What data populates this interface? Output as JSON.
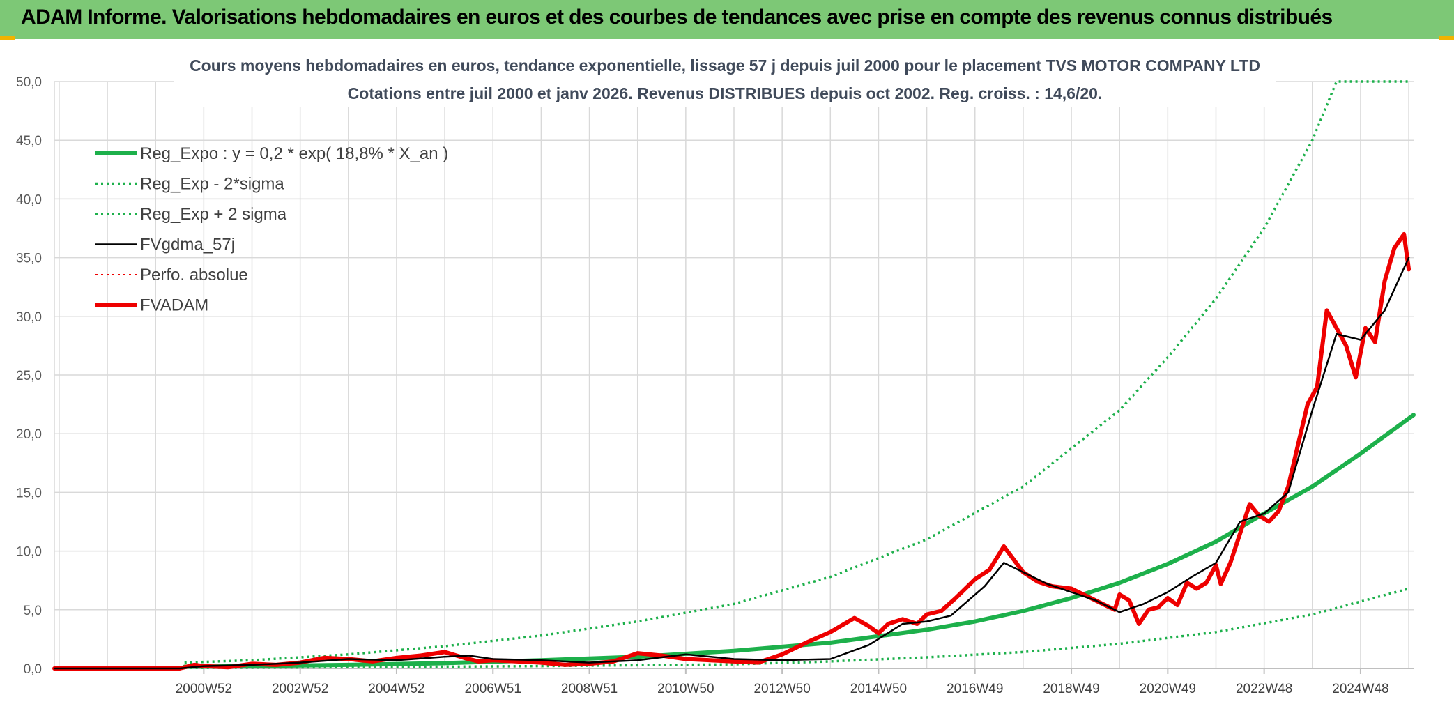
{
  "header": {
    "title": "ADAM Informe. Valorisations hebdomadaires en euros et des courbes de tendances avec prise en compte des revenus connus distribués"
  },
  "colors": {
    "banner": "#7dc876",
    "reg_green": "#1db04b",
    "black": "#000000",
    "red": "#ee0000",
    "grid": "#d9d9d9",
    "corner": "#f2b300"
  },
  "chart_data": {
    "type": "line",
    "title": "Cours moyens hebdomadaires en euros, tendance exponentielle, lissage 57 j depuis juil 2000 pour le placement TVS MOTOR COMPANY LTD",
    "subtitle": "Cotations entre juil 2000 et janv 2026. Revenus DISTRIBUES depuis oct 2002. Reg. croiss. : 14,6/20.",
    "xlabel": "",
    "ylabel": "",
    "ylim": [
      0,
      50
    ],
    "x_range": [
      1997.9,
      2026.1
    ],
    "grid": true,
    "legend_position": "top-left",
    "y_ticks": [
      "0,0",
      "5,0",
      "10,0",
      "15,0",
      "20,0",
      "25,0",
      "30,0",
      "35,0",
      "40,0",
      "45,0",
      "50,0"
    ],
    "x_ticks": [
      {
        "label": "2000W52",
        "x": 2001.0
      },
      {
        "label": "2002W52",
        "x": 2003.0
      },
      {
        "label": "2004W52",
        "x": 2005.0
      },
      {
        "label": "2006W51",
        "x": 2007.0
      },
      {
        "label": "2008W51",
        "x": 2009.0
      },
      {
        "label": "2010W50",
        "x": 2011.0
      },
      {
        "label": "2012W50",
        "x": 2013.0
      },
      {
        "label": "2014W50",
        "x": 2015.0
      },
      {
        "label": "2016W49",
        "x": 2017.0
      },
      {
        "label": "2018W49",
        "x": 2019.0
      },
      {
        "label": "2020W49",
        "x": 2021.0
      },
      {
        "label": "2022W48",
        "x": 2023.0
      },
      {
        "label": "2024W48",
        "x": 2025.0
      }
    ],
    "series": [
      {
        "name": "Reg_Expo : y = 0,2 * exp( 18,8% *  X_an )",
        "style": "solid-thick",
        "color": "#1db04b",
        "x": [
          2000.6,
          2002,
          2004,
          2006,
          2008,
          2010,
          2012,
          2014,
          2016,
          2017,
          2018,
          2019,
          2020,
          2021,
          2022,
          2023,
          2024,
          2025,
          2026.1
        ],
        "y": [
          0.15,
          0.2,
          0.3,
          0.45,
          0.7,
          1.0,
          1.5,
          2.2,
          3.3,
          4.0,
          4.9,
          6.0,
          7.3,
          8.9,
          10.8,
          13.2,
          15.5,
          18.3,
          21.6
        ]
      },
      {
        "name": "Reg_Exp - 2*sigma",
        "style": "dotted",
        "color": "#1db04b",
        "x": [
          2000.6,
          2004,
          2008,
          2012,
          2014,
          2016,
          2018,
          2020,
          2022,
          2024,
          2026
        ],
        "y": [
          0.05,
          0.1,
          0.2,
          0.35,
          0.6,
          0.95,
          1.4,
          2.1,
          3.1,
          4.6,
          6.8
        ]
      },
      {
        "name": "Reg_Exp + 2 sigma",
        "style": "dotted",
        "color": "#1db04b",
        "x": [
          2000.6,
          2002,
          2004,
          2006,
          2008,
          2010,
          2012,
          2014,
          2016,
          2018,
          2020,
          2021,
          2022,
          2023,
          2024,
          2024.5,
          2025,
          2026
        ],
        "y": [
          0.5,
          0.7,
          1.2,
          1.9,
          2.8,
          4.0,
          5.5,
          7.8,
          11,
          15.5,
          22,
          26.5,
          31.5,
          37.5,
          45,
          50,
          50,
          50
        ]
      },
      {
        "name": "FVgdma_57j",
        "style": "solid",
        "color": "#000000",
        "x": [
          1997.9,
          2000.5,
          2001,
          2002,
          2003,
          2004,
          2005,
          2006,
          2006.5,
          2007,
          2008,
          2009,
          2010,
          2011,
          2012,
          2013,
          2014,
          2014.8,
          2015.5,
          2016,
          2016.5,
          2017.2,
          2017.6,
          2018,
          2018.5,
          2019,
          2019.5,
          2020,
          2020.5,
          2021,
          2021.5,
          2022,
          2022.5,
          2023,
          2023.5,
          2024,
          2024.5,
          2025,
          2025.5,
          2026
        ],
        "y": [
          0,
          0,
          0.2,
          0.3,
          0.5,
          0.8,
          0.7,
          1.0,
          1.1,
          0.8,
          0.7,
          0.5,
          0.7,
          1.2,
          0.8,
          0.7,
          0.8,
          2.0,
          3.8,
          4.0,
          4.5,
          7.0,
          9.0,
          8.2,
          7.2,
          6.5,
          5.8,
          4.8,
          5.5,
          6.5,
          7.8,
          9.0,
          12.5,
          13.2,
          15.0,
          22,
          28.5,
          28.0,
          30.5,
          35.0
        ]
      },
      {
        "name": "Perfo. absolue",
        "style": "dotted",
        "color": "#ee0000",
        "x": [
          1997.9,
          2000.5,
          2001,
          2002,
          2003,
          2004,
          2005,
          2006,
          2006.5,
          2007,
          2008,
          2009,
          2010,
          2011,
          2012,
          2013,
          2014,
          2014.8,
          2015.5,
          2016,
          2016.5,
          2017.2,
          2017.6,
          2018,
          2018.5,
          2019,
          2019.5,
          2020,
          2020.5,
          2021,
          2021.5,
          2022,
          2022.5,
          2023,
          2023.5,
          2024,
          2024.5,
          2025,
          2025.5,
          2026
        ],
        "y": [
          0,
          0,
          0.2,
          0.3,
          0.5,
          0.8,
          0.7,
          1.0,
          1.1,
          0.8,
          0.7,
          0.5,
          0.7,
          1.2,
          0.8,
          0.7,
          0.8,
          2.0,
          3.8,
          4.0,
          4.5,
          7.0,
          9.0,
          8.2,
          7.2,
          6.5,
          5.8,
          4.8,
          5.5,
          6.5,
          7.8,
          9.0,
          12.5,
          13.2,
          15.0,
          22,
          28.5,
          28.0,
          30.5,
          35.0
        ]
      },
      {
        "name": "FVADAM",
        "style": "solid-thick",
        "color": "#ee0000",
        "x": [
          1997.9,
          2000.5,
          2000.8,
          2001,
          2001.5,
          2002,
          2002.5,
          2003,
          2003.5,
          2004,
          2004.5,
          2005,
          2005.5,
          2006,
          2006.4,
          2006.7,
          2007,
          2007.5,
          2008,
          2008.5,
          2009,
          2009.5,
          2010,
          2010.5,
          2011,
          2011.5,
          2012,
          2012.5,
          2013,
          2013.5,
          2014,
          2014.5,
          2014.8,
          2015,
          2015.2,
          2015.5,
          2015.8,
          2016,
          2016.3,
          2016.6,
          2017,
          2017.3,
          2017.6,
          2017.8,
          2018,
          2018.3,
          2018.6,
          2019,
          2019.3,
          2019.6,
          2019.9,
          2020,
          2020.2,
          2020.4,
          2020.6,
          2020.8,
          2021,
          2021.2,
          2021.4,
          2021.6,
          2021.8,
          2022,
          2022.1,
          2022.3,
          2022.5,
          2022.7,
          2022.9,
          2023.1,
          2023.3,
          2023.5,
          2023.7,
          2023.9,
          2024.1,
          2024.3,
          2024.5,
          2024.7,
          2024.9,
          2025.1,
          2025.3,
          2025.5,
          2025.7,
          2025.9,
          2026
        ],
        "y": [
          0,
          0,
          0.3,
          0.2,
          0.1,
          0.4,
          0.3,
          0.5,
          0.9,
          0.8,
          0.6,
          0.9,
          1.1,
          1.4,
          0.9,
          0.6,
          0.7,
          0.6,
          0.5,
          0.3,
          0.4,
          0.6,
          1.3,
          1.1,
          0.8,
          0.7,
          0.6,
          0.5,
          1.2,
          2.2,
          3.1,
          4.3,
          3.6,
          3.0,
          3.8,
          4.2,
          3.8,
          4.6,
          4.9,
          6.0,
          7.6,
          8.4,
          10.4,
          9.3,
          8.2,
          7.4,
          7.0,
          6.8,
          6.2,
          5.6,
          5.0,
          6.3,
          5.8,
          3.8,
          5.0,
          5.2,
          6.0,
          5.4,
          7.3,
          6.8,
          7.3,
          8.8,
          7.2,
          9.0,
          11.5,
          14.0,
          13.0,
          12.5,
          13.4,
          15.5,
          19.0,
          22.5,
          24.0,
          30.5,
          29.0,
          27.5,
          24.8,
          29.0,
          27.8,
          33.0,
          35.8,
          37.0,
          34.0
        ]
      }
    ]
  },
  "legend": [
    {
      "label": "Reg_Expo : y = 0,2 * exp( 18,8% *  X_an )"
    },
    {
      "label": "Reg_Exp - 2*sigma"
    },
    {
      "label": "Reg_Exp + 2 sigma"
    },
    {
      "label": "FVgdma_57j"
    },
    {
      "label": "Perfo. absolue"
    },
    {
      "label": "FVADAM"
    }
  ]
}
